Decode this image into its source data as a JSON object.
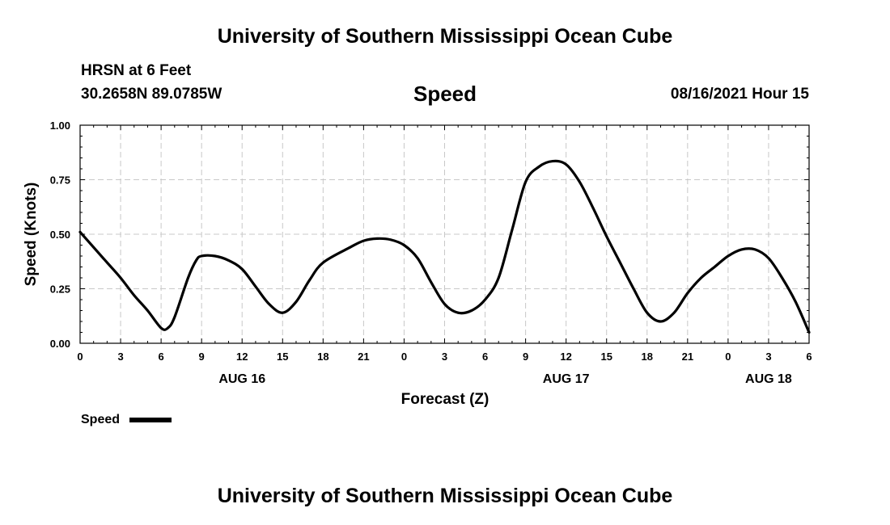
{
  "header": {
    "title_top": "University of Southern Mississippi Ocean Cube",
    "station": "HRSN at 6 Feet",
    "coords": "30.2658N  89.0785W",
    "datetime": "08/16/2021 Hour 15",
    "title_bottom": "University of Southern Mississippi Ocean Cube"
  },
  "chart_data": {
    "type": "line",
    "title": "Speed",
    "xlabel": "Forecast (Z)",
    "ylabel": "Speed (Knots)",
    "xlim": [
      0,
      54
    ],
    "ylim": [
      0,
      1
    ],
    "grid": true,
    "y_ticks": [
      0,
      0.25,
      0.5,
      0.75,
      1
    ],
    "y_tick_labels": [
      "0.00",
      "0.25",
      "0.50",
      "0.75",
      "1.00"
    ],
    "x_ticks": [
      0,
      3,
      6,
      9,
      12,
      15,
      18,
      21,
      24,
      27,
      30,
      33,
      36,
      39,
      42,
      45,
      48,
      51,
      54
    ],
    "x_tick_labels": [
      "0",
      "3",
      "6",
      "9",
      "12",
      "15",
      "18",
      "21",
      "0",
      "3",
      "6",
      "9",
      "12",
      "15",
      "18",
      "21",
      "0",
      "3",
      "6"
    ],
    "date_labels": [
      {
        "x": 12,
        "label": "AUG 16"
      },
      {
        "x": 36,
        "label": "AUG 17"
      },
      {
        "x": 51,
        "label": "AUG 18"
      }
    ],
    "series": [
      {
        "name": "Speed",
        "color": "#000000",
        "x": [
          0,
          1,
          2,
          3,
          4,
          5,
          6,
          6.5,
          7,
          8,
          8.6,
          9,
          10,
          11,
          12,
          13,
          14,
          15,
          16,
          17,
          18,
          20,
          21,
          22,
          23,
          24,
          25,
          26,
          27,
          28,
          29,
          30,
          31,
          32,
          33,
          34,
          35,
          36,
          37,
          38,
          39,
          40,
          41,
          42,
          43,
          44,
          45,
          46,
          47,
          48,
          49,
          50,
          51,
          52,
          53,
          54
        ],
        "y": [
          0.51,
          0.44,
          0.37,
          0.3,
          0.22,
          0.15,
          0.07,
          0.07,
          0.12,
          0.3,
          0.38,
          0.4,
          0.4,
          0.38,
          0.34,
          0.26,
          0.18,
          0.14,
          0.19,
          0.29,
          0.37,
          0.44,
          0.47,
          0.48,
          0.475,
          0.45,
          0.39,
          0.28,
          0.18,
          0.14,
          0.15,
          0.2,
          0.3,
          0.52,
          0.74,
          0.81,
          0.835,
          0.82,
          0.74,
          0.62,
          0.49,
          0.37,
          0.25,
          0.14,
          0.1,
          0.14,
          0.23,
          0.3,
          0.35,
          0.4,
          0.43,
          0.43,
          0.39,
          0.3,
          0.19,
          0.05
        ]
      }
    ],
    "legend": {
      "label": "Speed",
      "position": "bottom-left"
    }
  }
}
